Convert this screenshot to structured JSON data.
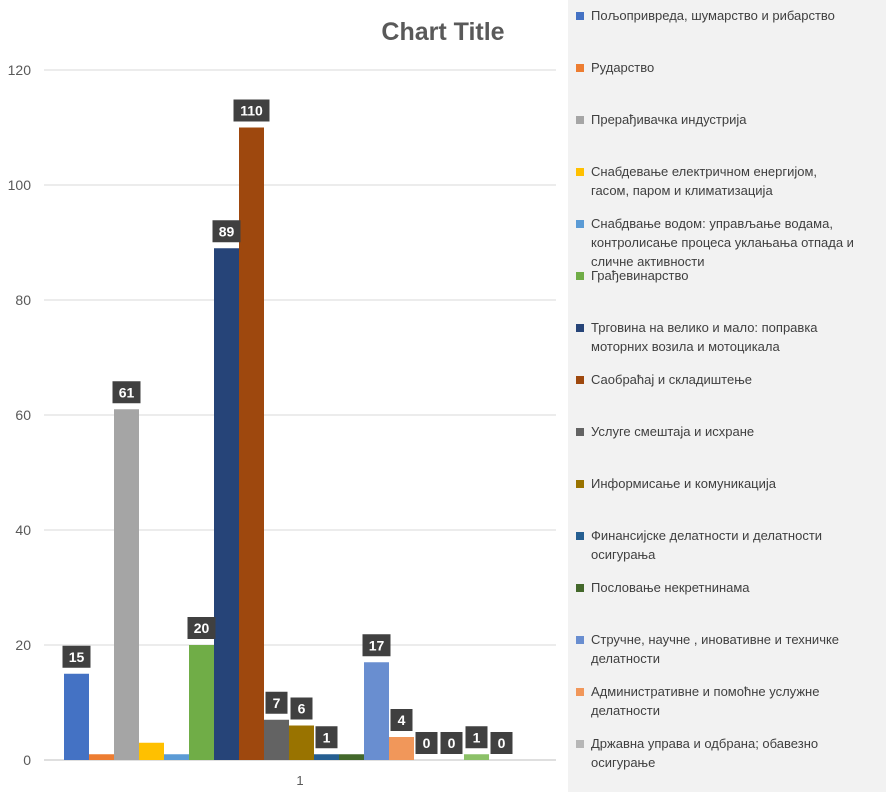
{
  "chart_data": {
    "type": "bar",
    "title": "Chart Title",
    "categories": [
      "1"
    ],
    "ylim": [
      0,
      120
    ],
    "yticks": [
      0,
      20,
      40,
      60,
      80,
      100,
      120
    ],
    "grid": true,
    "legend_position": "right",
    "series": [
      {
        "name": "Пољопривреда, шумарство и рибарство",
        "values": [
          15
        ],
        "color": "#4472c4",
        "label": "15"
      },
      {
        "name": " Рударство",
        "values": [
          1
        ],
        "color": "#ed7d31",
        "label": ""
      },
      {
        "name": " Прерађивачка индустрија",
        "values": [
          61
        ],
        "color": "#a5a5a5",
        "label": "61"
      },
      {
        "name": "Снабдевање електричном енергијом,\nгасом, паром и климатизација",
        "values": [
          3
        ],
        "color": "#ffc000",
        "label": ""
      },
      {
        "name": "Снабдвање водом: управљање водама,\nконтролисање процеса уклањања отпада и\nсличне активности",
        "values": [
          1
        ],
        "color": "#5b9bd5",
        "label": ""
      },
      {
        "name": "Грађевинарство",
        "values": [
          20
        ],
        "color": "#70ad47",
        "label": "20"
      },
      {
        "name": "Трговина на велико и мало: поправка\nмоторних возила и мотоцикала",
        "values": [
          89
        ],
        "color": "#264478",
        "label": "89"
      },
      {
        "name": "Саобраћај и складиштење",
        "values": [
          110
        ],
        "color": "#9e480e",
        "label": "110"
      },
      {
        "name": "Услуге смештаја и исхране",
        "values": [
          7
        ],
        "color": "#636363",
        "label": "7"
      },
      {
        "name": "Информисање и комуникација",
        "values": [
          6
        ],
        "color": "#997300",
        "label": "6"
      },
      {
        "name": "Финансијске делатности  и делатности\nосигурања",
        "values": [
          1
        ],
        "color": "#255e91",
        "label": "1"
      },
      {
        "name": "Пословање некретнинама",
        "values": [
          1
        ],
        "color": "#43682b",
        "label": ""
      },
      {
        "name": "Стручне, научне , иновативне и техничке\nделатности",
        "values": [
          17
        ],
        "color": "#698ed0",
        "label": "17"
      },
      {
        "name": "Административне и помоћне услужне\nделатности",
        "values": [
          4
        ],
        "color": "#f1975a",
        "label": "4"
      },
      {
        "name": "Државна управа и одбрана; обавезно\nосигурање",
        "values": [
          0
        ],
        "color": "#b7b7b7",
        "label": "0"
      },
      {
        "name": "",
        "values": [
          0
        ],
        "color": "#ffcd33",
        "label": "0"
      },
      {
        "name": "",
        "values": [
          1
        ],
        "color": "#8cc168",
        "label": "1"
      },
      {
        "name": "",
        "values": [
          0
        ],
        "color": "#7cafdd",
        "label": "0"
      }
    ]
  }
}
